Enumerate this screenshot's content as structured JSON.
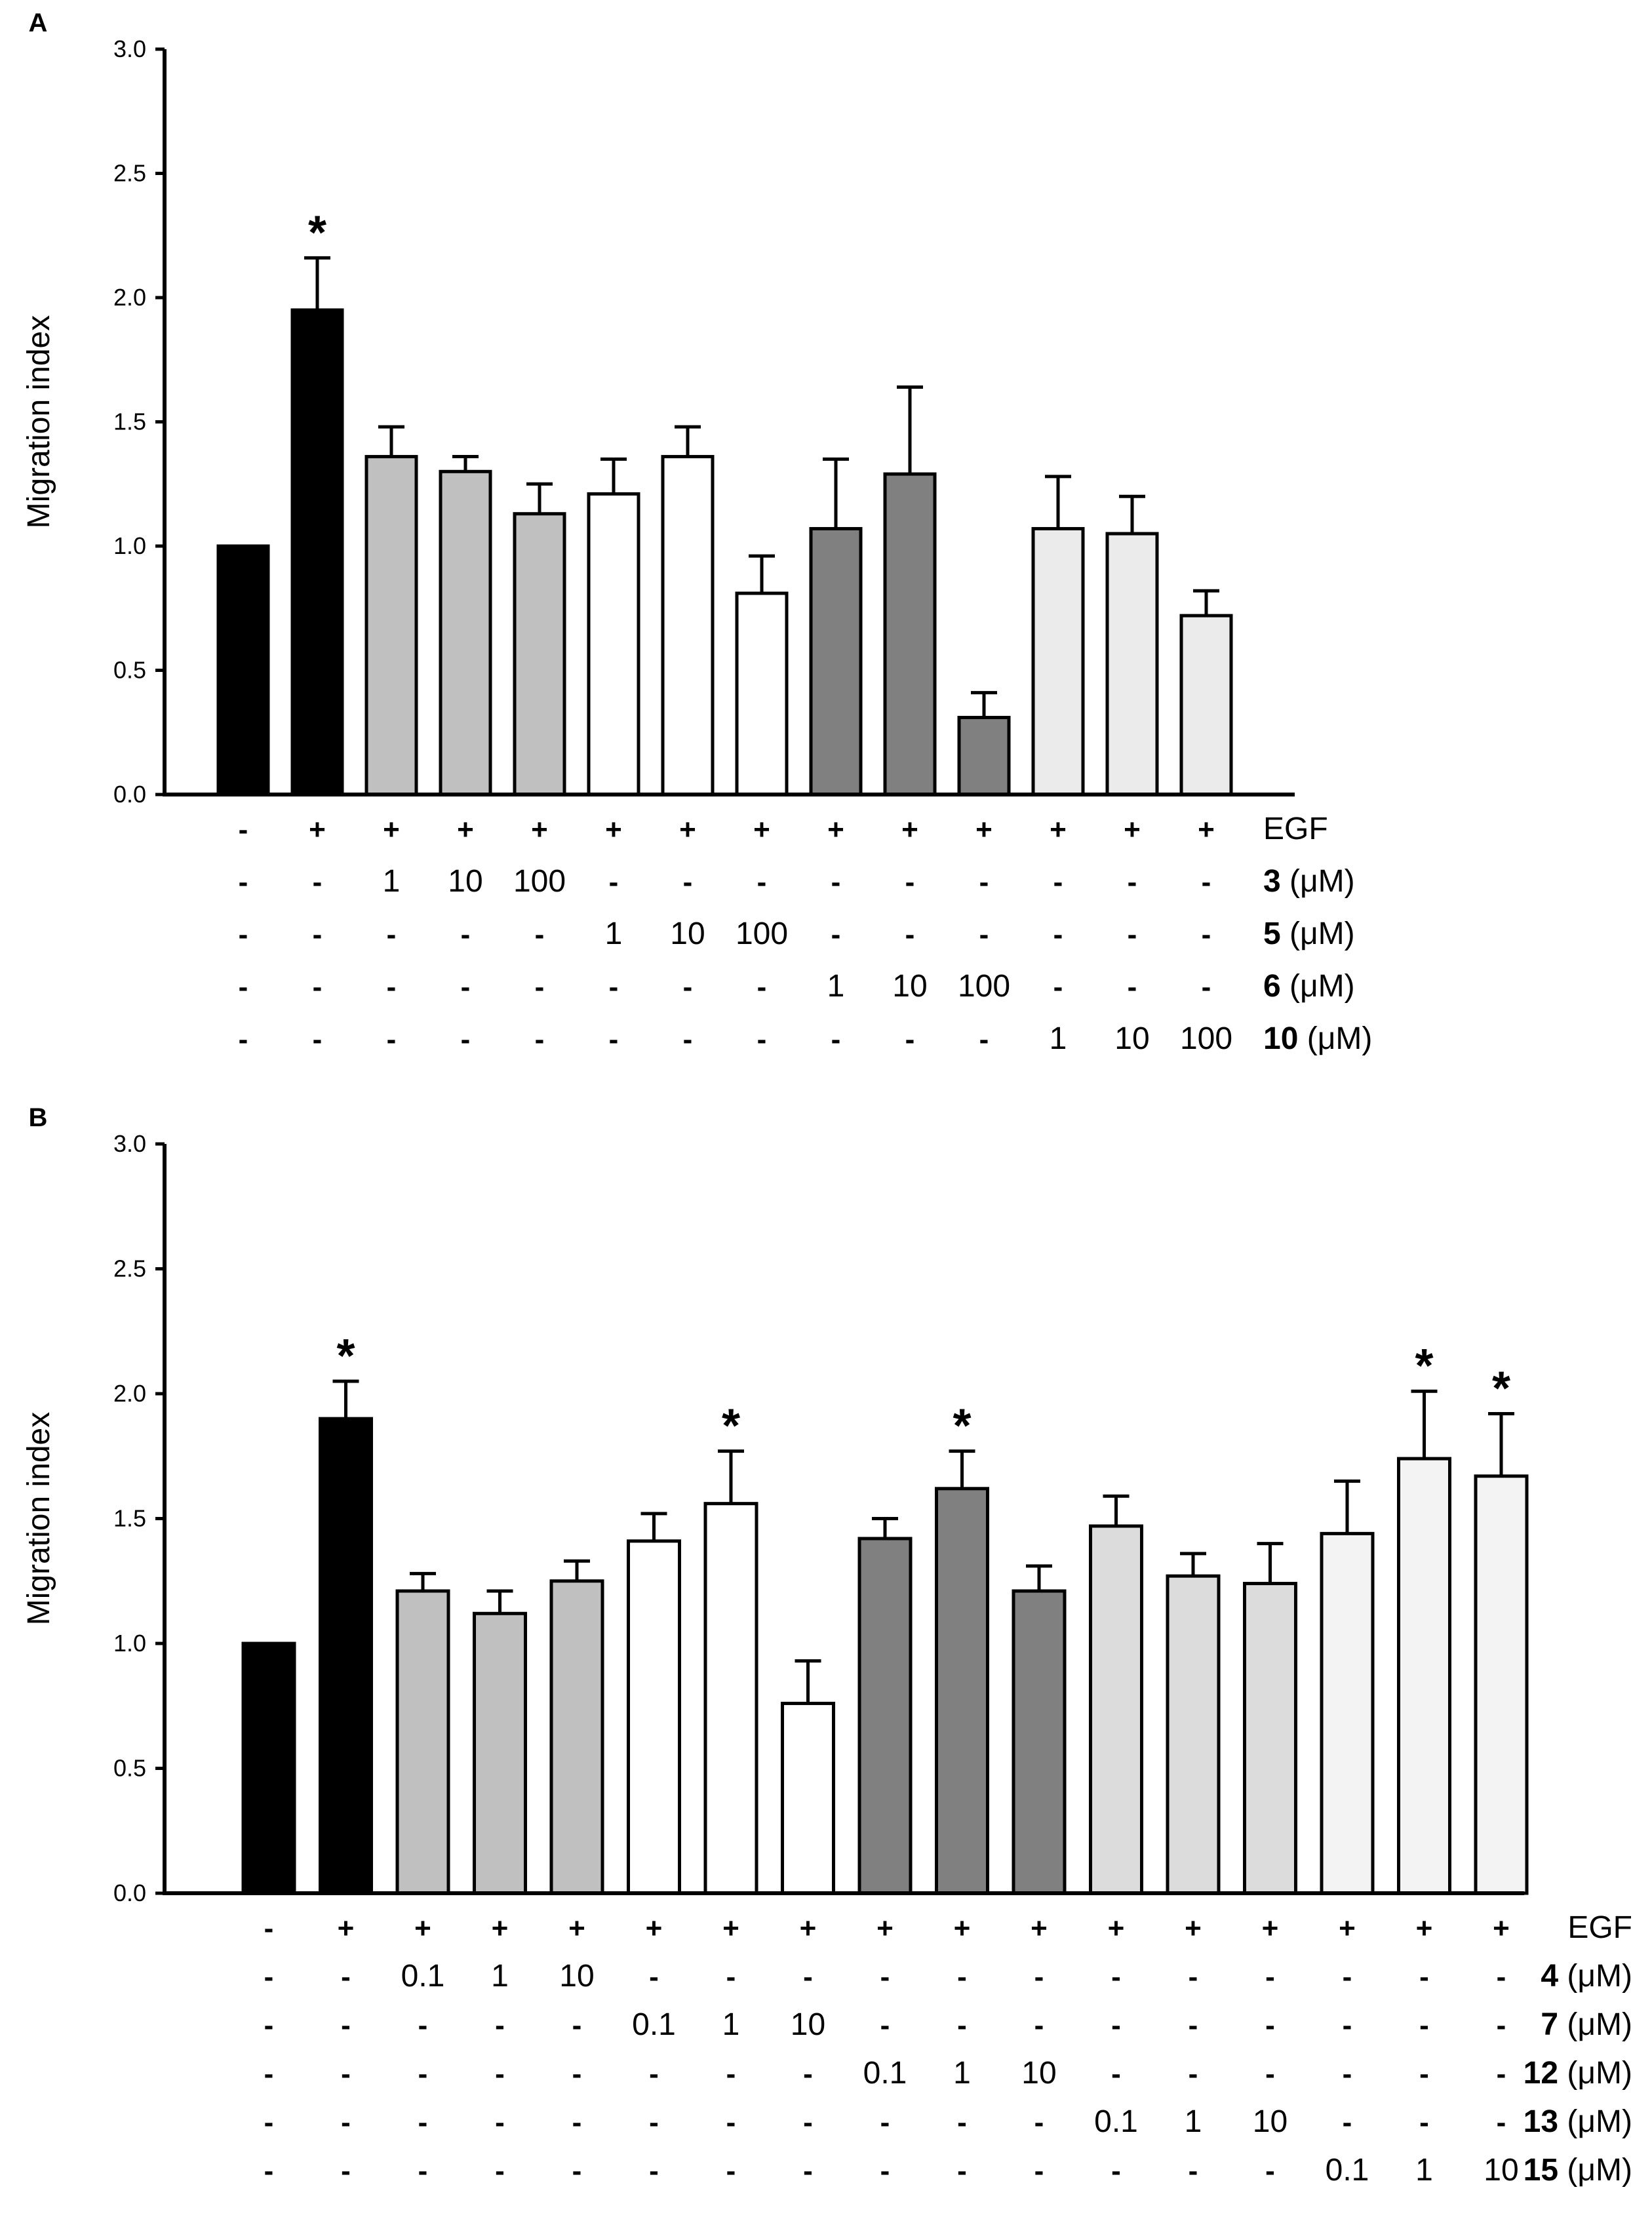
{
  "chart_data": [
    {
      "panel": "A",
      "type": "bar",
      "title": "",
      "xlabel": "",
      "ylabel": "Migration index",
      "ylim": [
        0.0,
        3.0
      ],
      "yticks": [
        "0.0",
        "0.5",
        "1.0",
        "1.5",
        "2.0",
        "2.5",
        "3.0"
      ],
      "significance_marker": "*",
      "bars": [
        {
          "value": 1.0,
          "error": 0.0,
          "fill": "#000000",
          "sig": false
        },
        {
          "value": 1.95,
          "error": 0.21,
          "fill": "#000000",
          "sig": true
        },
        {
          "value": 1.36,
          "error": 0.12,
          "fill": "#c0c0c0",
          "sig": false
        },
        {
          "value": 1.3,
          "error": 0.06,
          "fill": "#c0c0c0",
          "sig": false
        },
        {
          "value": 1.13,
          "error": 0.12,
          "fill": "#c0c0c0",
          "sig": false
        },
        {
          "value": 1.21,
          "error": 0.14,
          "fill": "#ffffff",
          "sig": false
        },
        {
          "value": 1.36,
          "error": 0.12,
          "fill": "#ffffff",
          "sig": false
        },
        {
          "value": 0.81,
          "error": 0.15,
          "fill": "#ffffff",
          "sig": false
        },
        {
          "value": 1.07,
          "error": 0.28,
          "fill": "#808080",
          "sig": false
        },
        {
          "value": 1.29,
          "error": 0.35,
          "fill": "#808080",
          "sig": false
        },
        {
          "value": 0.31,
          "error": 0.1,
          "fill": "#808080",
          "sig": false
        },
        {
          "value": 1.07,
          "error": 0.21,
          "fill": "#ebebeb",
          "sig": false
        },
        {
          "value": 1.05,
          "error": 0.15,
          "fill": "#ebebeb",
          "sig": false
        },
        {
          "value": 0.72,
          "error": 0.1,
          "fill": "#ebebeb",
          "sig": false
        }
      ],
      "treatment_rows": [
        {
          "compound": "",
          "unit": "EGF",
          "cells": [
            "-",
            "+",
            "+",
            "+",
            "+",
            "+",
            "+",
            "+",
            "+",
            "+",
            "+",
            "+",
            "+",
            "+"
          ]
        },
        {
          "compound": "3",
          "unit": "(μM)",
          "cells": [
            "-",
            "-",
            "1",
            "10",
            "100",
            "-",
            "-",
            "-",
            "-",
            "-",
            "-",
            "-",
            "-",
            "-"
          ]
        },
        {
          "compound": "5",
          "unit": "(μM)",
          "cells": [
            "-",
            "-",
            "-",
            "-",
            "-",
            "1",
            "10",
            "100",
            "-",
            "-",
            "-",
            "-",
            "-",
            "-"
          ]
        },
        {
          "compound": "6",
          "unit": "(μM)",
          "cells": [
            "-",
            "-",
            "-",
            "-",
            "-",
            "-",
            "-",
            "-",
            "1",
            "10",
            "100",
            "-",
            "-",
            "-"
          ]
        },
        {
          "compound": "10",
          "unit": "(μM)",
          "cells": [
            "-",
            "-",
            "-",
            "-",
            "-",
            "-",
            "-",
            "-",
            "-",
            "-",
            "-",
            "1",
            "10",
            "100"
          ]
        }
      ]
    },
    {
      "panel": "B",
      "type": "bar",
      "title": "",
      "xlabel": "",
      "ylabel": "Migration index",
      "ylim": [
        0.0,
        3.0
      ],
      "yticks": [
        "0.0",
        "0.5",
        "1.0",
        "1.5",
        "2.0",
        "2.5",
        "3.0"
      ],
      "significance_marker": "*",
      "bars": [
        {
          "value": 1.0,
          "error": 0.0,
          "fill": "#000000",
          "sig": false
        },
        {
          "value": 1.9,
          "error": 0.15,
          "fill": "#000000",
          "sig": true
        },
        {
          "value": 1.21,
          "error": 0.07,
          "fill": "#c0c0c0",
          "sig": false
        },
        {
          "value": 1.12,
          "error": 0.09,
          "fill": "#c0c0c0",
          "sig": false
        },
        {
          "value": 1.25,
          "error": 0.08,
          "fill": "#c0c0c0",
          "sig": false
        },
        {
          "value": 1.41,
          "error": 0.11,
          "fill": "#ffffff",
          "sig": false
        },
        {
          "value": 1.56,
          "error": 0.21,
          "fill": "#ffffff",
          "sig": true
        },
        {
          "value": 0.76,
          "error": 0.17,
          "fill": "#ffffff",
          "sig": false
        },
        {
          "value": 1.42,
          "error": 0.08,
          "fill": "#808080",
          "sig": false
        },
        {
          "value": 1.62,
          "error": 0.15,
          "fill": "#808080",
          "sig": true
        },
        {
          "value": 1.21,
          "error": 0.1,
          "fill": "#808080",
          "sig": false
        },
        {
          "value": 1.47,
          "error": 0.12,
          "fill": "#dcdcdc",
          "sig": false
        },
        {
          "value": 1.27,
          "error": 0.09,
          "fill": "#dcdcdc",
          "sig": false
        },
        {
          "value": 1.24,
          "error": 0.16,
          "fill": "#dcdcdc",
          "sig": false
        },
        {
          "value": 1.44,
          "error": 0.21,
          "fill": "#f3f3f3",
          "sig": false
        },
        {
          "value": 1.74,
          "error": 0.27,
          "fill": "#f3f3f3",
          "sig": true
        },
        {
          "value": 1.67,
          "error": 0.25,
          "fill": "#f3f3f3",
          "sig": true
        }
      ],
      "treatment_rows": [
        {
          "compound": "",
          "unit": "EGF",
          "cells": [
            "-",
            "+",
            "+",
            "+",
            "+",
            "+",
            "+",
            "+",
            "+",
            "+",
            "+",
            "+",
            "+",
            "+",
            "+",
            "+",
            "+"
          ]
        },
        {
          "compound": "4",
          "unit": "(μM)",
          "cells": [
            "-",
            "-",
            "0.1",
            "1",
            "10",
            "-",
            "-",
            "-",
            "-",
            "-",
            "-",
            "-",
            "-",
            "-",
            "-",
            "-",
            "-"
          ]
        },
        {
          "compound": "7",
          "unit": "(μM)",
          "cells": [
            "-",
            "-",
            "-",
            "-",
            "-",
            "0.1",
            "1",
            "10",
            "-",
            "-",
            "-",
            "-",
            "-",
            "-",
            "-",
            "-",
            "-"
          ]
        },
        {
          "compound": "12",
          "unit": "(μM)",
          "cells": [
            "-",
            "-",
            "-",
            "-",
            "-",
            "-",
            "-",
            "-",
            "0.1",
            "1",
            "10",
            "-",
            "-",
            "-",
            "-",
            "-",
            "-"
          ]
        },
        {
          "compound": "13",
          "unit": "(μM)",
          "cells": [
            "-",
            "-",
            "-",
            "-",
            "-",
            "-",
            "-",
            "-",
            "-",
            "-",
            "-",
            "0.1",
            "1",
            "10",
            "-",
            "-",
            "-"
          ]
        },
        {
          "compound": "15",
          "unit": "(μM)",
          "cells": [
            "-",
            "-",
            "-",
            "-",
            "-",
            "-",
            "-",
            "-",
            "-",
            "-",
            "-",
            "-",
            "-",
            "-",
            "0.1",
            "1",
            "10"
          ]
        }
      ]
    }
  ]
}
